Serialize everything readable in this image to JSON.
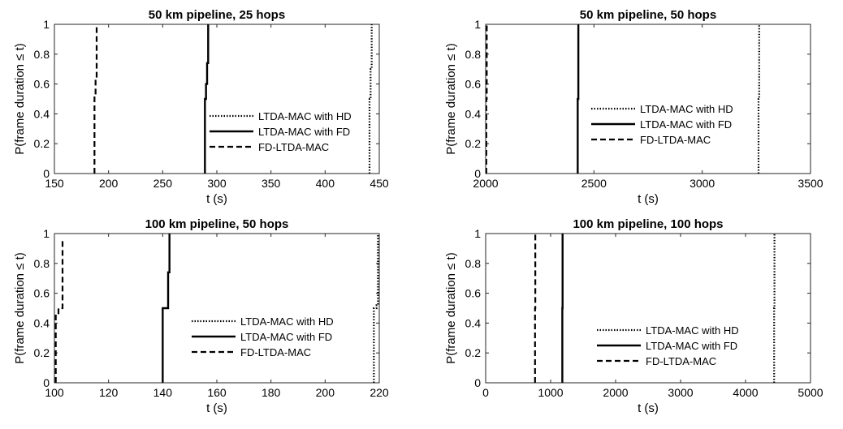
{
  "figure": {
    "ylabel": "P(frame duration ≤ t)",
    "xlabel": "t (s)"
  },
  "chart_data": [
    {
      "type": "line",
      "title": "50 km pipeline, 25 hops",
      "xlabel": "t (s)",
      "ylabel": "P(frame duration ≤ t)",
      "xlim": [
        150,
        450
      ],
      "ylim": [
        0,
        1
      ],
      "xticks": [
        "150",
        "200",
        "250",
        "300",
        "350",
        "400",
        "450"
      ],
      "yticks": [
        "0",
        "0.2",
        "0.4",
        "0.6",
        "0.8",
        "1"
      ],
      "legend_position": "center-right",
      "series": [
        {
          "name": "LTDA-MAC with HD",
          "style": "dotted",
          "x": [
            441,
            441,
            442,
            442,
            443,
            443
          ],
          "y": [
            0,
            0.5,
            0.5,
            0.7,
            0.7,
            1
          ]
        },
        {
          "name": "LTDA-MAC with FD",
          "style": "solid",
          "x": [
            289,
            289,
            290,
            290,
            291,
            291,
            292,
            292
          ],
          "y": [
            0,
            0.5,
            0.5,
            0.6,
            0.6,
            0.74,
            0.74,
            1
          ]
        },
        {
          "name": "FD-LTDA-MAC",
          "style": "dashed",
          "x": [
            187,
            187,
            188,
            188,
            189,
            189
          ],
          "y": [
            0,
            0.52,
            0.52,
            0.64,
            0.64,
            0.98
          ]
        }
      ]
    },
    {
      "type": "line",
      "title": "50 km pipeline, 50 hops",
      "xlabel": "t (s)",
      "ylabel": "P(frame duration ≤ t)",
      "xlim": [
        2000,
        3500
      ],
      "ylim": [
        0,
        1
      ],
      "xticks": [
        "2000",
        "2500",
        "3000",
        "3500"
      ],
      "yticks": [
        "0",
        "0.2",
        "0.4",
        "0.6",
        "0.8",
        "1"
      ],
      "legend_position": "center",
      "series": [
        {
          "name": "LTDA-MAC with HD",
          "style": "dotted",
          "x": [
            3260,
            3260,
            3263,
            3263
          ],
          "y": [
            0,
            0.5,
            0.5,
            1
          ]
        },
        {
          "name": "LTDA-MAC with FD",
          "style": "solid",
          "x": [
            2425,
            2425,
            2428,
            2428
          ],
          "y": [
            0,
            0.5,
            0.5,
            1
          ]
        },
        {
          "name": "FD-LTDA-MAC",
          "style": "dashed",
          "x": [
            2003,
            2003,
            2005,
            2005
          ],
          "y": [
            0,
            0.5,
            0.5,
            1
          ]
        }
      ]
    },
    {
      "type": "line",
      "title": "100 km pipeline, 50 hops",
      "xlabel": "t (s)",
      "ylabel": "P(frame duration ≤ t)",
      "xlim": [
        100,
        220
      ],
      "ylim": [
        0,
        1
      ],
      "xticks": [
        "100",
        "120",
        "140",
        "160",
        "180",
        "200",
        "220"
      ],
      "yticks": [
        "0",
        "0.2",
        "0.4",
        "0.6",
        "0.8",
        "1"
      ],
      "legend_position": "center",
      "series": [
        {
          "name": "LTDA-MAC with HD",
          "style": "dotted",
          "x": [
            218,
            218,
            219,
            219,
            219.5,
            219.5
          ],
          "y": [
            0,
            0.5,
            0.5,
            0.52,
            0.52,
            1
          ]
        },
        {
          "name": "LTDA-MAC with FD",
          "style": "solid",
          "x": [
            140,
            140,
            142,
            142,
            142.5,
            142.5
          ],
          "y": [
            0,
            0.5,
            0.5,
            0.74,
            0.74,
            1
          ]
        },
        {
          "name": "FD-LTDA-MAC",
          "style": "dashed",
          "x": [
            100.5,
            100.5,
            101.5,
            101.5,
            103,
            103
          ],
          "y": [
            0,
            0.46,
            0.46,
            0.5,
            0.5,
            0.96
          ]
        }
      ]
    },
    {
      "type": "line",
      "title": "100 km pipeline, 100 hops",
      "xlabel": "t (s)",
      "ylabel": "P(frame duration ≤ t)",
      "xlim": [
        0,
        5000
      ],
      "ylim": [
        0,
        1
      ],
      "xticks": [
        "0",
        "1000",
        "2000",
        "3000",
        "4000",
        "5000"
      ],
      "yticks": [
        "0",
        "0.2",
        "0.4",
        "0.6",
        "0.8",
        "1"
      ],
      "legend_position": "center",
      "series": [
        {
          "name": "LTDA-MAC with HD",
          "style": "dotted",
          "x": [
            4440,
            4440,
            4445,
            4445
          ],
          "y": [
            0,
            0.5,
            0.5,
            1
          ]
        },
        {
          "name": "LTDA-MAC with FD",
          "style": "solid",
          "x": [
            1180,
            1180,
            1184,
            1184
          ],
          "y": [
            0,
            0.5,
            0.5,
            1
          ]
        },
        {
          "name": "FD-LTDA-MAC",
          "style": "dashed",
          "x": [
            760,
            760,
            764,
            764
          ],
          "y": [
            0,
            0.5,
            0.5,
            1
          ]
        }
      ]
    }
  ]
}
